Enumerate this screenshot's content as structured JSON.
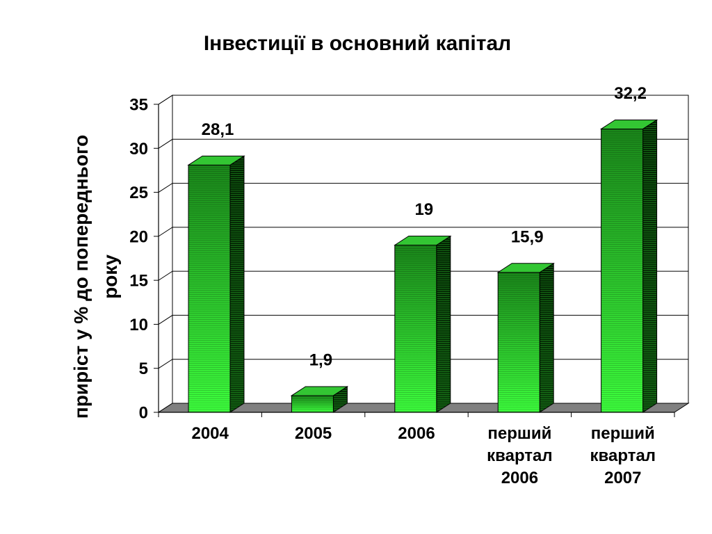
{
  "chart_data": {
    "type": "bar",
    "three_d": true,
    "title": "Інвестиції в основний капітал",
    "xlabel": "",
    "ylabel": "приріст у % до попереднього року",
    "categories": [
      "2004",
      "2005",
      "2006",
      "перший квартал 2006",
      "перший квартал 2007"
    ],
    "values": [
      28.1,
      1.9,
      19,
      15.9,
      32.2
    ],
    "data_labels": [
      "28,1",
      "1,9",
      "19",
      "15,9",
      "32,2"
    ],
    "ylim": [
      0,
      35
    ],
    "yticks": [
      0,
      5,
      10,
      15,
      20,
      25,
      30,
      35
    ],
    "grid": true,
    "colors": {
      "bar_front_top": "#1a861a",
      "bar_front_bottom": "#3dff3d",
      "bar_side_top": "#022202",
      "bar_side_bottom": "#0a400a",
      "bar_side_stripe": "#1f8a1f",
      "bar_top": "#33c633",
      "floor": "#808080",
      "walls": "#ffffff",
      "lines": "#000000"
    }
  }
}
